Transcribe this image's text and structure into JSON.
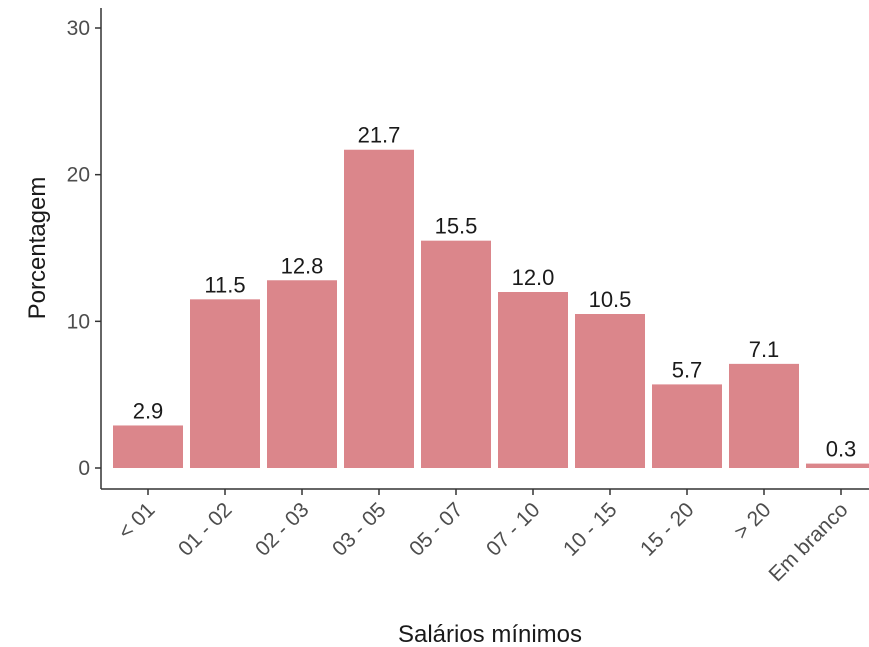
{
  "chart_data": {
    "type": "bar",
    "categories": [
      "< 01",
      "01 - 02",
      "02 - 03",
      "03 - 05",
      "05 - 07",
      "07 - 10",
      "10 - 15",
      "15 - 20",
      "> 20",
      "Em branco"
    ],
    "values": [
      2.9,
      11.5,
      12.8,
      21.7,
      15.5,
      12.0,
      10.5,
      5.7,
      7.1,
      0.3
    ],
    "value_labels": [
      "2.9",
      "11.5",
      "12.8",
      "21.7",
      "15.5",
      "12.0",
      "10.5",
      "5.7",
      "7.1",
      "0.3"
    ],
    "xlabel": "Salários mínimos",
    "ylabel": "Porcentagem",
    "ylim": [
      0,
      30
    ],
    "yticks": [
      0,
      10,
      20,
      30
    ],
    "bar_color": "#db868b",
    "axis_color": "#333333",
    "grid": false
  }
}
